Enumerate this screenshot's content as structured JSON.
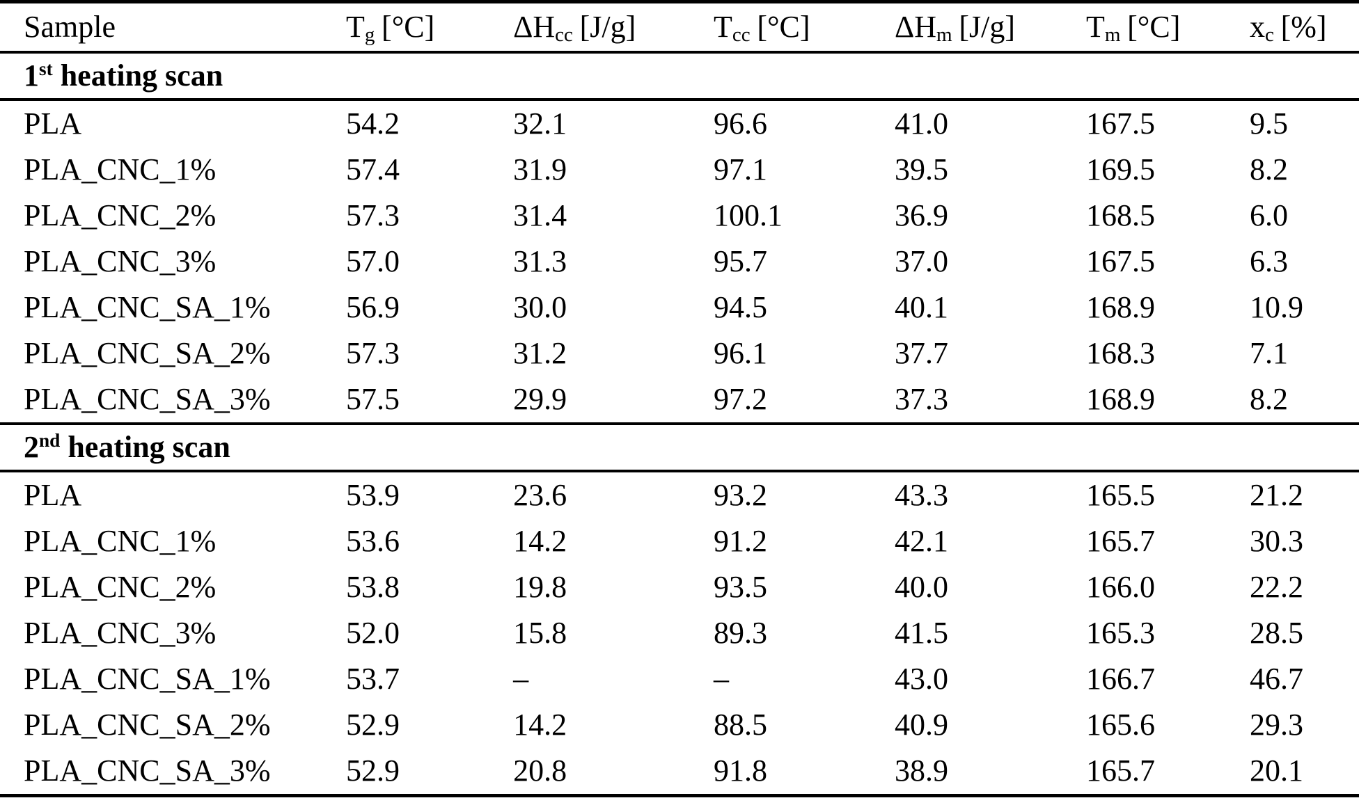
{
  "page": {
    "background_color": "#ffffff",
    "text_color": "#000000"
  },
  "table": {
    "columns": [
      {
        "base": "Sample",
        "sub": "",
        "unit": ""
      },
      {
        "base": "T",
        "sub": "g",
        "unit": "[°C]"
      },
      {
        "base": "ΔH",
        "sub": "cc",
        "unit": "[J/g]"
      },
      {
        "base": "T",
        "sub": "cc",
        "unit": "[°C]"
      },
      {
        "base": "ΔH",
        "sub": "m",
        "unit": "[J/g]"
      },
      {
        "base": "T",
        "sub": "m",
        "unit": "[°C]"
      },
      {
        "base": "x",
        "sub": "c",
        "unit": "[%]"
      }
    ],
    "sections": [
      {
        "title_number": "1",
        "title_ordinal": "st",
        "title_text": " heating scan",
        "rows": [
          {
            "sample": "PLA",
            "values": [
              "54.2",
              "32.1",
              "96.6",
              "41.0",
              "167.5",
              "9.5"
            ]
          },
          {
            "sample": "PLA_CNC_1%",
            "values": [
              "57.4",
              "31.9",
              "97.1",
              "39.5",
              "169.5",
              "8.2"
            ]
          },
          {
            "sample": "PLA_CNC_2%",
            "values": [
              "57.3",
              "31.4",
              "100.1",
              "36.9",
              "168.5",
              "6.0"
            ]
          },
          {
            "sample": "PLA_CNC_3%",
            "values": [
              "57.0",
              "31.3",
              "95.7",
              "37.0",
              "167.5",
              "6.3"
            ]
          },
          {
            "sample": "PLA_CNC_SA_1%",
            "values": [
              "56.9",
              "30.0",
              "94.5",
              "40.1",
              "168.9",
              "10.9"
            ]
          },
          {
            "sample": "PLA_CNC_SA_2%",
            "values": [
              "57.3",
              "31.2",
              "96.1",
              "37.7",
              "168.3",
              "7.1"
            ]
          },
          {
            "sample": "PLA_CNC_SA_3%",
            "values": [
              "57.5",
              "29.9",
              "97.2",
              "37.3",
              "168.9",
              "8.2"
            ]
          }
        ]
      },
      {
        "title_number": "2",
        "title_ordinal": "nd",
        "title_text": " heating scan",
        "rows": [
          {
            "sample": "PLA",
            "values": [
              "53.9",
              "23.6",
              "93.2",
              "43.3",
              "165.5",
              "21.2"
            ]
          },
          {
            "sample": "PLA_CNC_1%",
            "values": [
              "53.6",
              "14.2",
              "91.2",
              "42.1",
              "165.7",
              "30.3"
            ]
          },
          {
            "sample": "PLA_CNC_2%",
            "values": [
              "53.8",
              "19.8",
              "93.5",
              "40.0",
              "166.0",
              "22.2"
            ]
          },
          {
            "sample": "PLA_CNC_3%",
            "values": [
              "52.0",
              "15.8",
              "89.3",
              "41.5",
              "165.3",
              "28.5"
            ]
          },
          {
            "sample": "PLA_CNC_SA_1%",
            "values": [
              "53.7",
              "–",
              "–",
              "43.0",
              "166.7",
              "46.7"
            ]
          },
          {
            "sample": "PLA_CNC_SA_2%",
            "values": [
              "52.9",
              "14.2",
              "88.5",
              "40.9",
              "165.6",
              "29.3"
            ]
          },
          {
            "sample": "PLA_CNC_SA_3%",
            "values": [
              "52.9",
              "20.8",
              "91.8",
              "38.9",
              "165.7",
              "20.1"
            ]
          }
        ]
      }
    ]
  }
}
